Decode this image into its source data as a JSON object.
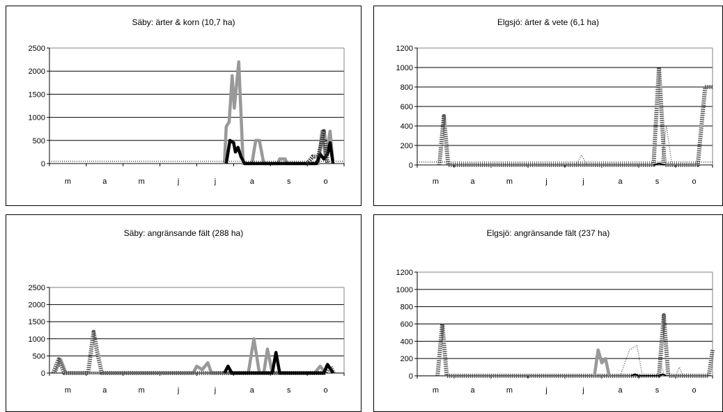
{
  "chart_data": [
    {
      "type": "line",
      "title": "Säby: ärter & korn (10,7 ha)",
      "categories": [
        "m",
        "a",
        "m",
        "j",
        "j",
        "a",
        "s",
        "o"
      ],
      "ylim": [
        0,
        2500
      ],
      "yticks": [
        "0",
        "500",
        "1000",
        "1500",
        "2000",
        "2500"
      ],
      "grid": true,
      "series": [
        {
          "color": "#999999",
          "style": "solid-thick",
          "points": [
            [
              4.75,
              0
            ],
            [
              4.8,
              800
            ],
            [
              4.88,
              900
            ],
            [
              4.96,
              1900
            ],
            [
              5.02,
              1200
            ],
            [
              5.08,
              1700
            ],
            [
              5.14,
              2200
            ],
            [
              5.2,
              1100
            ],
            [
              5.26,
              0
            ],
            [
              5.5,
              0
            ],
            [
              5.6,
              500
            ],
            [
              5.7,
              500
            ],
            [
              5.82,
              0
            ],
            [
              6.2,
              0
            ],
            [
              6.25,
              100
            ],
            [
              6.4,
              100
            ],
            [
              6.45,
              0
            ],
            [
              7.3,
              0
            ],
            [
              7.4,
              700
            ],
            [
              7.5,
              100
            ],
            [
              7.62,
              700
            ],
            [
              7.7,
              0
            ]
          ]
        },
        {
          "color": "#000000",
          "style": "solid-thick",
          "points": [
            [
              4.8,
              0
            ],
            [
              4.9,
              500
            ],
            [
              5.0,
              450
            ],
            [
              5.05,
              250
            ],
            [
              5.12,
              350
            ],
            [
              5.2,
              150
            ],
            [
              5.3,
              0
            ],
            [
              7.25,
              0
            ],
            [
              7.35,
              200
            ],
            [
              7.45,
              100
            ],
            [
              7.55,
              200
            ],
            [
              7.62,
              450
            ],
            [
              7.7,
              0
            ]
          ]
        },
        {
          "color": "#333333",
          "style": "dotted-thick",
          "points": [
            [
              7.0,
              0
            ],
            [
              7.15,
              150
            ],
            [
              7.3,
              150
            ],
            [
              7.45,
              700
            ],
            [
              7.55,
              0
            ]
          ]
        },
        {
          "color": "#333333",
          "style": "dotted-thin",
          "points": [
            [
              0,
              50
            ],
            [
              8,
              50
            ]
          ]
        }
      ]
    },
    {
      "type": "line",
      "title": "Elgsjö: ärter & vete (6,1 ha)",
      "categories": [
        "m",
        "a",
        "m",
        "j",
        "j",
        "a",
        "s",
        "o"
      ],
      "ylim": [
        0,
        1200
      ],
      "yticks": [
        "0",
        "200",
        "400",
        "600",
        "800",
        "1000",
        "1200"
      ],
      "grid": true,
      "series": [
        {
          "color": "#555555",
          "style": "dotted-thick",
          "points": [
            [
              0.6,
              0
            ],
            [
              0.72,
              500
            ],
            [
              0.84,
              0
            ],
            [
              6.4,
              0
            ],
            [
              6.55,
              1000
            ],
            [
              6.7,
              0
            ],
            [
              7.6,
              0
            ],
            [
              7.8,
              800
            ],
            [
              8,
              800
            ]
          ]
        },
        {
          "color": "#555555",
          "style": "dotted-thin",
          "points": [
            [
              4.3,
              0
            ],
            [
              4.45,
              100
            ],
            [
              4.6,
              0
            ],
            [
              6.6,
              0
            ],
            [
              6.75,
              400
            ],
            [
              6.9,
              0
            ]
          ]
        },
        {
          "color": "#000000",
          "style": "solid-thin",
          "points": [
            [
              6.4,
              0
            ],
            [
              6.55,
              15
            ],
            [
              6.7,
              0
            ]
          ]
        },
        {
          "color": "#333333",
          "style": "dotted-thin",
          "points": [
            [
              0,
              30
            ],
            [
              8,
              30
            ]
          ]
        }
      ]
    },
    {
      "type": "line",
      "title": "Säby: angränsande fält (288 ha)",
      "categories": [
        "m",
        "a",
        "m",
        "j",
        "j",
        "a",
        "s",
        "o"
      ],
      "ylim": [
        0,
        2500
      ],
      "yticks": [
        "0",
        "500",
        "1000",
        "1500",
        "2000",
        "2500"
      ],
      "grid": true,
      "series": [
        {
          "color": "#999999",
          "style": "solid-thick",
          "points": [
            [
              0.15,
              0
            ],
            [
              0.3,
              400
            ],
            [
              0.45,
              0
            ],
            [
              3.9,
              0
            ],
            [
              4.0,
              200
            ],
            [
              4.15,
              100
            ],
            [
              4.3,
              300
            ],
            [
              4.4,
              0
            ],
            [
              5.4,
              0
            ],
            [
              5.55,
              1000
            ],
            [
              5.7,
              0
            ],
            [
              5.82,
              0
            ],
            [
              5.92,
              700
            ],
            [
              6.05,
              0
            ],
            [
              7.2,
              0
            ],
            [
              7.35,
              200
            ],
            [
              7.5,
              0
            ]
          ]
        },
        {
          "color": "#555555",
          "style": "dotted-thick",
          "points": [
            [
              0.1,
              0
            ],
            [
              0.25,
              400
            ],
            [
              0.4,
              0
            ],
            [
              1.05,
              0
            ],
            [
              1.2,
              1200
            ],
            [
              1.3,
              600
            ],
            [
              1.42,
              0
            ],
            [
              7.5,
              0
            ],
            [
              7.62,
              200
            ],
            [
              7.72,
              0
            ]
          ]
        },
        {
          "color": "#000000",
          "style": "solid-thick",
          "points": [
            [
              4.75,
              0
            ],
            [
              4.85,
              200
            ],
            [
              4.95,
              0
            ],
            [
              6.05,
              0
            ],
            [
              6.15,
              600
            ],
            [
              6.25,
              0
            ],
            [
              7.45,
              0
            ],
            [
              7.55,
              250
            ],
            [
              7.7,
              0
            ]
          ]
        },
        {
          "color": "#333333",
          "style": "dotted-thin",
          "points": [
            [
              0,
              0
            ],
            [
              8,
              0
            ]
          ]
        }
      ]
    },
    {
      "type": "line",
      "title": "Elgsjö: angränsande fält (237 ha)",
      "categories": [
        "m",
        "a",
        "m",
        "j",
        "j",
        "a",
        "s",
        "o"
      ],
      "ylim": [
        0,
        1200
      ],
      "yticks": [
        "0",
        "200",
        "400",
        "600",
        "800",
        "1000",
        "1200"
      ],
      "grid": true,
      "series": [
        {
          "color": "#555555",
          "style": "dotted-thick",
          "points": [
            [
              0.55,
              0
            ],
            [
              0.68,
              600
            ],
            [
              0.8,
              0
            ],
            [
              6.55,
              0
            ],
            [
              6.68,
              700
            ],
            [
              6.8,
              0
            ],
            [
              7.9,
              0
            ],
            [
              8,
              300
            ]
          ]
        },
        {
          "color": "#999999",
          "style": "solid-thick",
          "points": [
            [
              4.8,
              0
            ],
            [
              4.9,
              300
            ],
            [
              5.0,
              150
            ],
            [
              5.1,
              200
            ],
            [
              5.2,
              0
            ]
          ]
        },
        {
          "color": "#555555",
          "style": "dotted-thin",
          "points": [
            [
              5.5,
              0
            ],
            [
              5.75,
              300
            ],
            [
              5.95,
              350
            ],
            [
              6.1,
              0
            ],
            [
              6.5,
              0
            ],
            [
              6.6,
              150
            ],
            [
              6.7,
              0
            ],
            [
              7.0,
              0
            ],
            [
              7.1,
              100
            ],
            [
              7.2,
              0
            ]
          ]
        },
        {
          "color": "#000000",
          "style": "solid-thin",
          "points": [
            [
              5.8,
              0
            ],
            [
              5.9,
              20
            ],
            [
              6.0,
              0
            ],
            [
              6.55,
              0
            ],
            [
              6.65,
              20
            ],
            [
              6.75,
              0
            ]
          ]
        },
        {
          "color": "#333333",
          "style": "dotted-thin",
          "points": [
            [
              0,
              0
            ],
            [
              8,
              0
            ]
          ]
        }
      ]
    }
  ]
}
